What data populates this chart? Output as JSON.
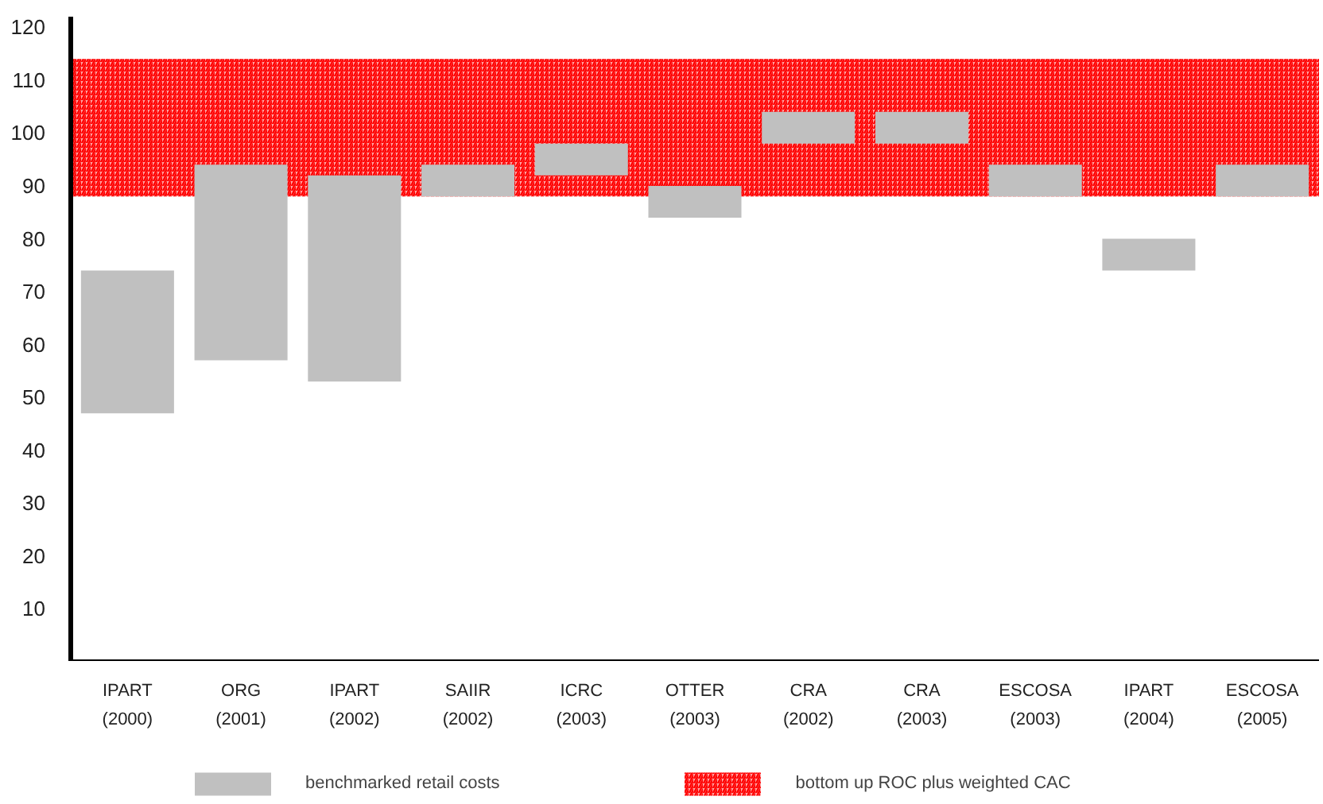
{
  "chart_data": {
    "type": "bar",
    "categories": [
      "IPART (2000)",
      "ORG (2001)",
      "IPART (2002)",
      "SAIIR (2002)",
      "ICRC (2003)",
      "OTTER (2003)",
      "CRA (2002)",
      "CRA (2003)",
      "ESCOSA (2003)",
      "IPART (2004)",
      "ESCOSA (2005)"
    ],
    "series": [
      {
        "name": "benchmarked retail costs",
        "color": "#c0c0c0",
        "values": [
          27,
          37,
          39,
          6,
          6,
          6,
          6,
          6,
          6,
          6,
          6
        ],
        "base": [
          47,
          57,
          53,
          88,
          92,
          84,
          98,
          98,
          88,
          74,
          88
        ]
      }
    ],
    "bands": [
      {
        "axis": "y",
        "from": 88,
        "to": 114,
        "label": "bottom up ROC plus weighted CAC",
        "color": "#ff0000"
      }
    ],
    "ylim": [
      0,
      122
    ],
    "yticks": [
      10,
      20,
      30,
      40,
      50,
      60,
      70,
      80,
      90,
      100,
      110,
      120
    ],
    "grid": false,
    "legend": "bottom"
  }
}
